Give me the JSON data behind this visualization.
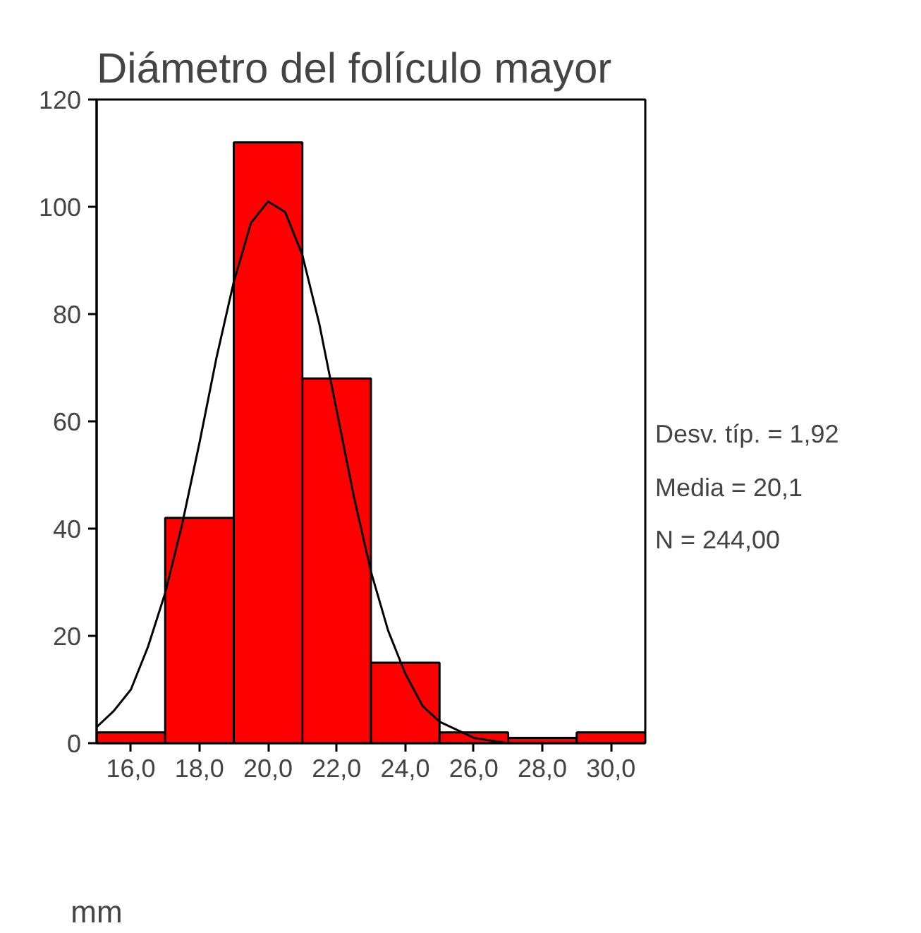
{
  "chart_data": {
    "type": "histogram",
    "title": "Diámetro del folículo mayor",
    "xlabel": "mm",
    "bins": [
      15,
      17,
      19,
      21,
      23,
      25,
      27,
      29,
      31
    ],
    "values": [
      2,
      42,
      112,
      68,
      15,
      2,
      1,
      2
    ],
    "color": "#ff0000",
    "series": [
      {
        "type": "line",
        "color": "#000000",
        "x": [
          15,
          15.5,
          16,
          16.5,
          17,
          17.5,
          18,
          18.5,
          19,
          19.5,
          20,
          20.5,
          21,
          21.5,
          22,
          22.5,
          23,
          23.5,
          24,
          24.5,
          25,
          26,
          27,
          28,
          29,
          30,
          31
        ],
        "values": [
          3,
          6,
          10,
          18,
          28,
          41,
          56,
          72,
          86,
          97,
          101,
          99,
          91,
          78,
          62,
          46,
          32,
          21,
          13,
          7,
          4,
          1,
          0,
          0,
          0,
          0,
          0
        ]
      }
    ],
    "xlim": [
      15,
      31
    ],
    "ylim": [
      0,
      120
    ],
    "xticks": [
      {
        "value": 16,
        "label": "16,0"
      },
      {
        "value": 18,
        "label": "18,0"
      },
      {
        "value": 20,
        "label": "20,0"
      },
      {
        "value": 22,
        "label": "22,0"
      },
      {
        "value": 24,
        "label": "24,0"
      },
      {
        "value": 26,
        "label": "26,0"
      },
      {
        "value": 28,
        "label": "28,0"
      },
      {
        "value": 30,
        "label": "30,0"
      }
    ],
    "yticks": [
      0,
      20,
      40,
      60,
      80,
      100,
      120
    ],
    "annotations": [
      "Desv. típ. = 1,92",
      "Media = 20,1",
      "N = 244,00"
    ],
    "grid": false
  }
}
